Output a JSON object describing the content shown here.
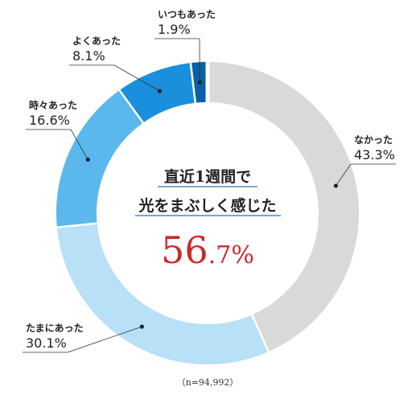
{
  "chart_data": {
    "type": "pie",
    "donut": true,
    "categories": [
      "いつもあった",
      "よくあった",
      "時々あった",
      "たまにあった",
      "なかった"
    ],
    "values": [
      1.9,
      8.1,
      16.6,
      30.1,
      43.3
    ],
    "value_labels": [
      "1.9%",
      "8.1%",
      "16.6%",
      "30.1%",
      "43.3%"
    ],
    "colors": [
      "#0a5fa8",
      "#1a8fdc",
      "#5bb8ec",
      "#b8e0f6",
      "#d9d9da"
    ],
    "center_text": {
      "line1": "直近1週間で",
      "line2": "光をまぶしく感じた",
      "value_main": "56",
      "value_fraction": ".7%"
    },
    "note": "（n=94,992）",
    "legend": "none"
  }
}
